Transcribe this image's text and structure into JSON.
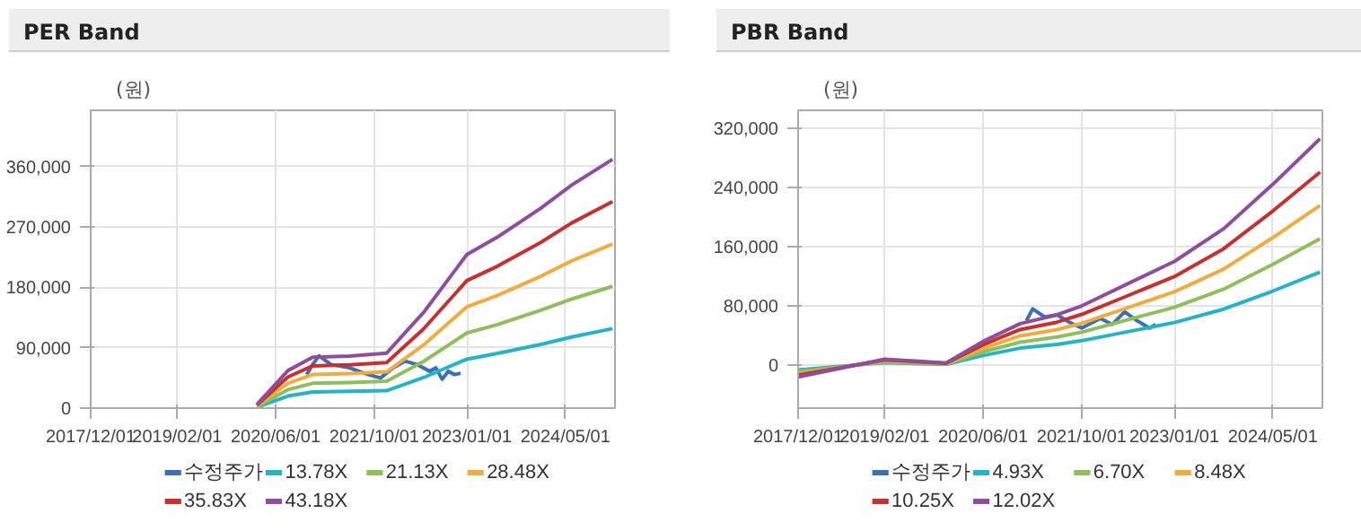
{
  "chart_data": [
    {
      "type": "line",
      "title": "PER Band",
      "ylabel": "(원)",
      "x": [
        "2020-03-01",
        "2020-08-01",
        "2020-12-01",
        "2021-06-01",
        "2021-12-01",
        "2022-06-01",
        "2023-01-01",
        "2023-06-01",
        "2024-01-01",
        "2024-06-01",
        "2024-12-20"
      ],
      "xlim": [
        "2017-12-01",
        "2025-01-01"
      ],
      "xticks": [
        {
          "value": "2017-12-01",
          "label": "2017/12/01"
        },
        {
          "value": "2019-02-01",
          "label": "2019/02/01"
        },
        {
          "value": "2020-06-01",
          "label": "2020/06/01"
        },
        {
          "value": "2021-10-01",
          "label": "2021/10/01"
        },
        {
          "value": "2023-01-01",
          "label": "2023/01/01"
        },
        {
          "value": "2024-05-01",
          "label": "2024/05/01"
        }
      ],
      "ylim": [
        0,
        444000
      ],
      "yticks": [
        0,
        {
          "value": 90000,
          "label": "90,000"
        },
        {
          "value": 180000,
          "label": "180,000"
        },
        {
          "value": 270000,
          "label": "270,000"
        },
        {
          "value": 360000,
          "label": "360,000"
        }
      ],
      "grid": true,
      "legend": "bottom",
      "marker": "none",
      "line_style": "solid",
      "series": [
        {
          "name": "수정주가",
          "color": "#3b6fb6",
          "x": [
            "2020-11-01",
            "2020-12-01",
            "2021-01-01",
            "2021-03-01",
            "2021-06-01",
            "2021-09-01",
            "2021-11-01",
            "2022-01-01",
            "2022-03-01",
            "2022-05-01",
            "2022-07-01",
            "2022-08-01",
            "2022-09-01",
            "2022-10-01",
            "2022-11-01",
            "2022-12-01"
          ],
          "values": [
            50000,
            65000,
            78000,
            65000,
            60000,
            50000,
            45000,
            60000,
            70000,
            65000,
            55000,
            60000,
            43000,
            55000,
            50000,
            52000
          ]
        },
        {
          "name": "13.78X",
          "color": "#21b5c6",
          "values": [
            1500,
            18000,
            24000,
            25000,
            26000,
            45500,
            73000,
            81500,
            95000,
            106000,
            118500
          ]
        },
        {
          "name": "21.13X",
          "color": "#8fbf59",
          "values": [
            2500,
            27500,
            37000,
            38000,
            40000,
            69500,
            112000,
            124500,
            146000,
            162500,
            181500
          ]
        },
        {
          "name": "28.48X",
          "color": "#f0ad3e",
          "values": [
            3500,
            37000,
            50000,
            51500,
            54000,
            94000,
            151000,
            168000,
            196500,
            219500,
            244500
          ]
        },
        {
          "name": "35.83X",
          "color": "#c8302f",
          "values": [
            4500,
            46500,
            63000,
            64500,
            68000,
            118000,
            190000,
            211500,
            247000,
            276000,
            308000
          ]
        },
        {
          "name": "43.18X",
          "color": "#8e4e9e",
          "values": [
            5500,
            56000,
            76000,
            77500,
            82000,
            142500,
            229000,
            255000,
            298000,
            332500,
            371000
          ]
        }
      ]
    },
    {
      "type": "line",
      "title": "PBR Band",
      "ylabel": "(원)",
      "x": [
        "2017-12-01",
        "2019-02-01",
        "2019-12-01",
        "2020-06-01",
        "2020-12-01",
        "2021-06-01",
        "2021-10-01",
        "2022-06-01",
        "2023-01-01",
        "2023-09-01",
        "2024-05-01",
        "2024-12-20"
      ],
      "xlim": [
        "2017-12-01",
        "2025-01-01"
      ],
      "xticks": [
        {
          "value": "2017-12-01",
          "label": "2017/12/01"
        },
        {
          "value": "2019-02-01",
          "label": "2019/02/01"
        },
        {
          "value": "2020-06-01",
          "label": "2020/06/01"
        },
        {
          "value": "2021-10-01",
          "label": "2021/10/01"
        },
        {
          "value": "2023-01-01",
          "label": "2023/01/01"
        },
        {
          "value": "2024-05-01",
          "label": "2024/05/01"
        }
      ],
      "ylim": [
        -58000,
        344000
      ],
      "yticks": [
        0,
        {
          "value": 80000,
          "label": "80,000"
        },
        {
          "value": 160000,
          "label": "160,000"
        },
        {
          "value": 240000,
          "label": "240,000"
        },
        {
          "value": 320000,
          "label": "320,000"
        }
      ],
      "grid": true,
      "legend": "bottom",
      "marker": "none",
      "line_style": "solid",
      "series": [
        {
          "name": "수정주가",
          "color": "#3b6fb6",
          "x": [
            "2021-01-01",
            "2021-02-01",
            "2021-04-01",
            "2021-06-01",
            "2021-08-01",
            "2021-10-01",
            "2022-01-01",
            "2022-03-01",
            "2022-05-01",
            "2022-07-01",
            "2022-09-01",
            "2022-10-01"
          ],
          "values": [
            60000,
            76000,
            65000,
            68000,
            58000,
            50000,
            63000,
            55000,
            72000,
            60000,
            50000,
            55000
          ]
        },
        {
          "name": "4.93X",
          "color": "#21b5c6",
          "values": [
            -6500,
            3500,
            1000,
            13000,
            23000,
            28000,
            33000,
            46000,
            57500,
            75500,
            100000,
            125500
          ]
        },
        {
          "name": "6.70X",
          "color": "#8fbf59",
          "values": [
            -9000,
            4500,
            1500,
            18000,
            31000,
            38000,
            44500,
            62500,
            78000,
            102500,
            136000,
            170500
          ]
        },
        {
          "name": "8.48X",
          "color": "#f0ad3e",
          "values": [
            -11500,
            5500,
            2000,
            22500,
            39500,
            48000,
            56500,
            79000,
            99000,
            129500,
            172000,
            215500
          ]
        },
        {
          "name": "10.25X",
          "color": "#c8302f",
          "values": [
            -13500,
            7000,
            2500,
            27500,
            48000,
            58000,
            68500,
            95500,
            119500,
            157000,
            208000,
            260500
          ]
        },
        {
          "name": "12.02X",
          "color": "#8e4e9e",
          "values": [
            -16000,
            8000,
            3000,
            32000,
            56000,
            68000,
            80000,
            112000,
            140000,
            184000,
            244000,
            305500
          ]
        }
      ]
    }
  ]
}
